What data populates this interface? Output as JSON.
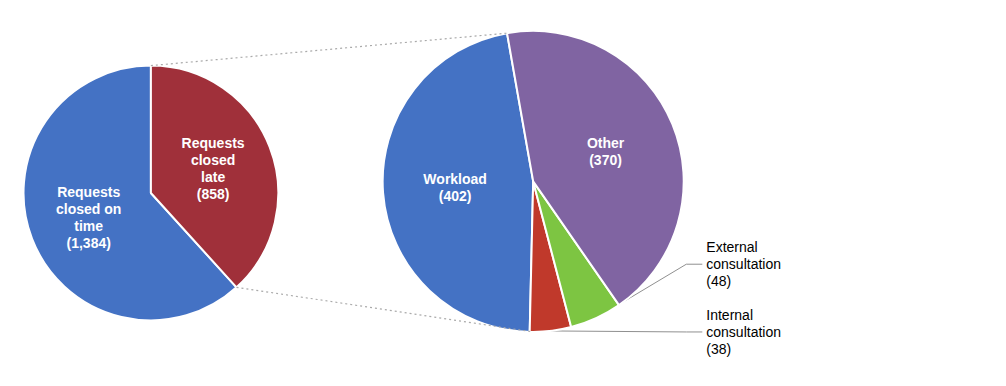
{
  "chart_data": [
    {
      "type": "pie",
      "categories": [
        "Requests\nclosed on\ntime\n(1,384)",
        "Requests\nclosed\nlate\n(858)"
      ],
      "values": [
        1384,
        858
      ],
      "colors": [
        "#4472C4",
        "#A0303A"
      ]
    },
    {
      "type": "pie",
      "categories": [
        "Workload\n(402)",
        "Internal\nconsultation\n(38)",
        "External\nconsultation\n(48)",
        "Other\n(370)"
      ],
      "values": [
        402,
        38,
        48,
        370
      ],
      "colors": [
        "#4472C4",
        "#C0392B",
        "#7DC542",
        "#8064A2"
      ]
    }
  ]
}
